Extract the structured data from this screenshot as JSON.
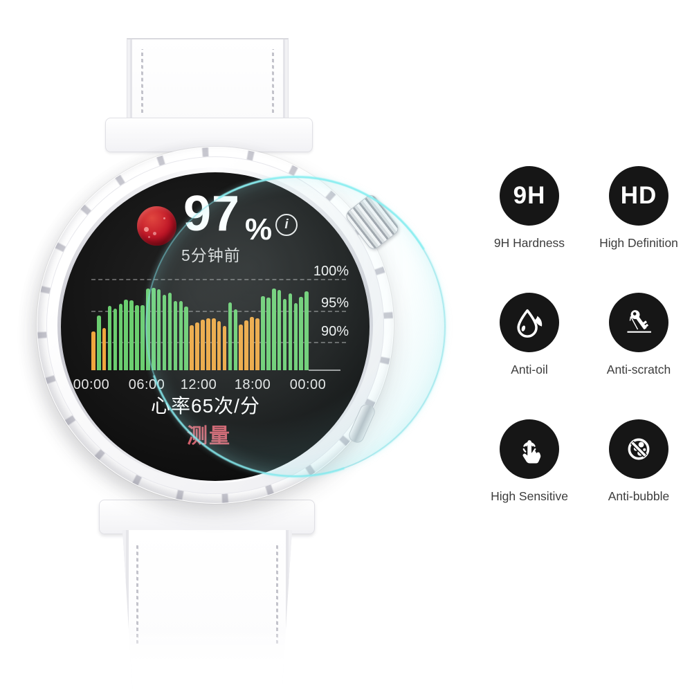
{
  "watch_ui": {
    "spo2_value": "97",
    "percent_sign": "%",
    "info_icon_glyph": "i",
    "time_ago": "5分钟前",
    "heart_rate_text": "心率65次/分",
    "measure_button": "测量"
  },
  "chart_data": {
    "type": "bar",
    "description": "24h SpO2 percentage bars on watch face",
    "x_tick_labels": [
      "00:00",
      "06:00",
      "12:00",
      "18:00",
      "00:00"
    ],
    "y_tick_labels": [
      "100%",
      "95%",
      "90%"
    ],
    "ylim": [
      85.6,
      101
    ],
    "grid": "dashed horizontal lines at 90, 95, 100",
    "legend": "none",
    "values": [
      91.8,
      94.3,
      92.3,
      95.8,
      95.4,
      96.2,
      96.8,
      96.7,
      95.9,
      95.9,
      98.6,
      98.7,
      98.5,
      97.6,
      97.9,
      96.6,
      96.6,
      95.7,
      92.8,
      93.2,
      93.6,
      93.9,
      93.9,
      93.4,
      92.6,
      96.4,
      95.3,
      92.9,
      93.5,
      94.1,
      93.9,
      97.4,
      97.2,
      98.6,
      98.4,
      96.9,
      97.8,
      96.3,
      97.3,
      98.2
    ],
    "colors": [
      "o",
      "g",
      "o",
      "g",
      "g",
      "g",
      "g",
      "g",
      "g",
      "g",
      "g",
      "g",
      "g",
      "g",
      "g",
      "g",
      "g",
      "g",
      "o",
      "o",
      "o",
      "o",
      "o",
      "o",
      "o",
      "g",
      "g",
      "o",
      "o",
      "o",
      "o",
      "g",
      "g",
      "g",
      "g",
      "g",
      "g",
      "g",
      "g",
      "g"
    ],
    "color_map": {
      "g": "#6bce70",
      "o": "#f0a63e"
    }
  },
  "colors": {
    "measure_red": "#d25f6b",
    "screen_black": "#141414",
    "glass_edge_cyan": "#7ad8e0",
    "feature_icon_bg": "#161616",
    "feature_label_gray": "#3c3c3c"
  },
  "features": [
    {
      "badge": "9H",
      "label": "9H Hardness"
    },
    {
      "badge": "HD",
      "label": "High Definition"
    },
    {
      "badge": "",
      "label": "Anti-oil"
    },
    {
      "badge": "",
      "label": "Anti-scratch"
    },
    {
      "badge": "",
      "label": "High Sensitive"
    },
    {
      "badge": "",
      "label": "Anti-bubble"
    }
  ]
}
